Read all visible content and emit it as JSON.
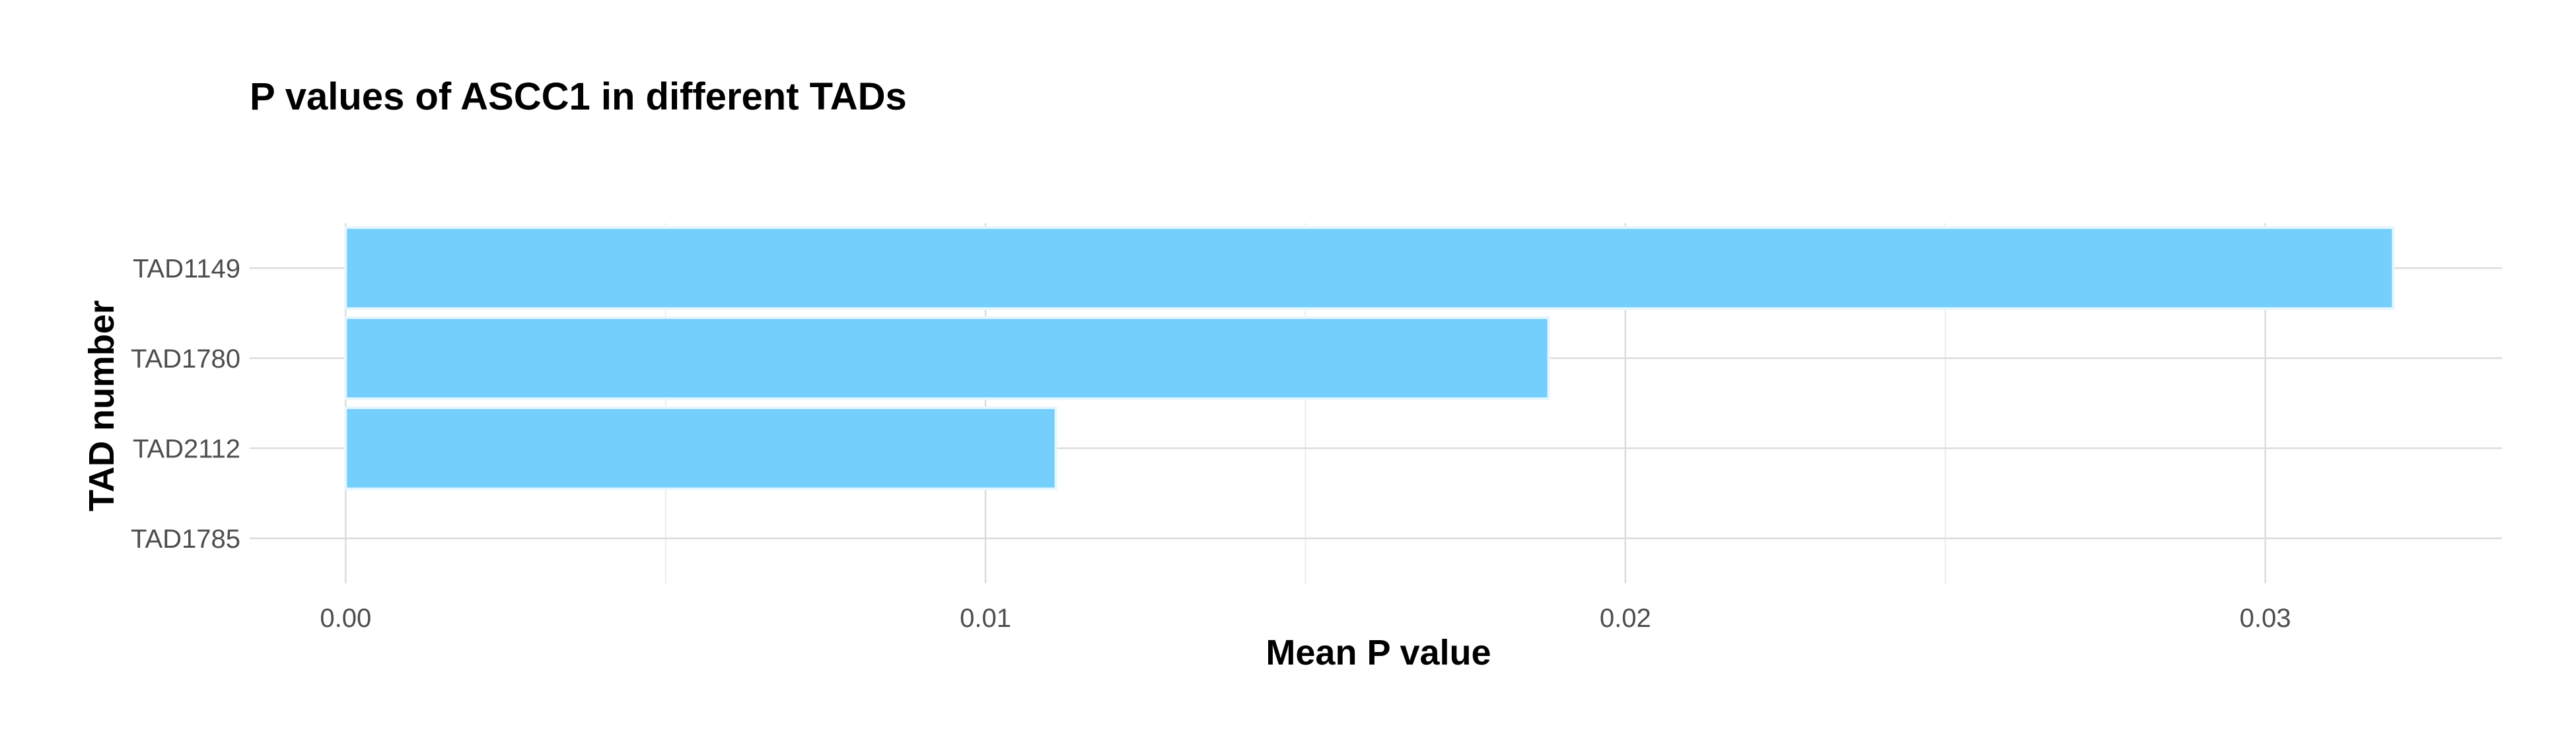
{
  "chart_data": {
    "type": "bar",
    "orientation": "horizontal",
    "title": "P values of ASCC1 in different TADs",
    "xlabel": "Mean P value",
    "ylabel": "TAD number",
    "categories": [
      "TAD1149",
      "TAD1780",
      "TAD2112",
      "TAD1785"
    ],
    "values": [
      0.032,
      0.0188,
      0.0111,
      0.0
    ],
    "xlim": [
      -0.0015,
      0.0337
    ],
    "xticks": [
      0.0,
      0.01,
      0.02,
      0.03
    ],
    "xtick_labels": [
      "0.00",
      "0.01",
      "0.02",
      "0.03"
    ],
    "grid": true,
    "bar_color": "#74CFFD",
    "bar_edge_color": "#E6F6FF"
  }
}
